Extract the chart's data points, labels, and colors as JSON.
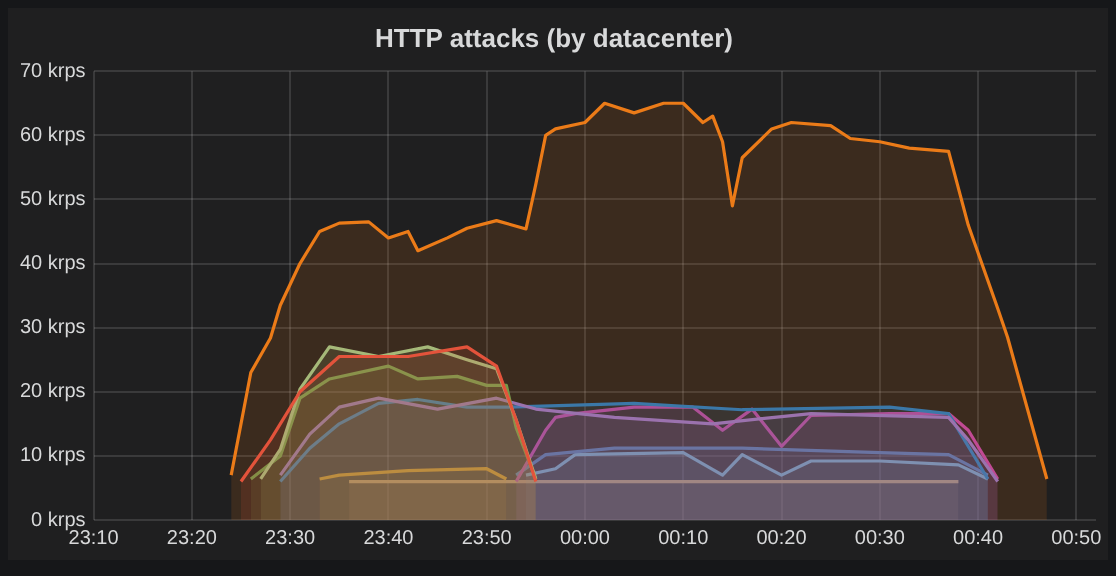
{
  "chart_data": {
    "type": "area",
    "title": "HTTP attacks (by datacenter)",
    "xlim": [
      "2000-01-01T23:10",
      "2000-01-02T00:52"
    ],
    "xticks": [
      {
        "value": "2000-01-01T23:10",
        "label": "23:10"
      },
      {
        "value": "2000-01-01T23:20",
        "label": "23:20"
      },
      {
        "value": "2000-01-01T23:30",
        "label": "23:30"
      },
      {
        "value": "2000-01-01T23:40",
        "label": "23:40"
      },
      {
        "value": "2000-01-01T23:50",
        "label": "23:50"
      },
      {
        "value": "2000-01-02T00:00",
        "label": "00:00"
      },
      {
        "value": "2000-01-02T00:10",
        "label": "00:10"
      },
      {
        "value": "2000-01-02T00:20",
        "label": "00:20"
      },
      {
        "value": "2000-01-02T00:30",
        "label": "00:30"
      },
      {
        "value": "2000-01-02T00:40",
        "label": "00:40"
      },
      {
        "value": "2000-01-02T00:50",
        "label": "00:50"
      }
    ],
    "ylim": [
      0,
      70
    ],
    "yticks": [
      {
        "value": 0,
        "label": "0 krps"
      },
      {
        "value": 10,
        "label": "10 krps"
      },
      {
        "value": 20,
        "label": "20 krps"
      },
      {
        "value": 30,
        "label": "30 krps"
      },
      {
        "value": 40,
        "label": "40 krps"
      },
      {
        "value": 50,
        "label": "50 krps"
      },
      {
        "value": 60,
        "label": "60 krps"
      },
      {
        "value": 70,
        "label": "70 krps"
      }
    ],
    "grid": true,
    "marker": "none",
    "line_style": "solid",
    "series": [
      {
        "color": "#eb7b18",
        "x": [
          "2000-01-01T23:24",
          "2000-01-01T23:26",
          "2000-01-01T23:28",
          "2000-01-01T23:29",
          "2000-01-01T23:31",
          "2000-01-01T23:33",
          "2000-01-01T23:35",
          "2000-01-01T23:38",
          "2000-01-01T23:40",
          "2000-01-01T23:42",
          "2000-01-01T23:43",
          "2000-01-01T23:46",
          "2000-01-01T23:48",
          "2000-01-01T23:51",
          "2000-01-01T23:54",
          "2000-01-01T23:55",
          "2000-01-01T23:56",
          "2000-01-01T23:57",
          "2000-01-02T00:00",
          "2000-01-02T00:02",
          "2000-01-02T00:05",
          "2000-01-02T00:08",
          "2000-01-02T00:10",
          "2000-01-02T00:12",
          "2000-01-02T00:13",
          "2000-01-02T00:14",
          "2000-01-02T00:15",
          "2000-01-02T00:16",
          "2000-01-02T00:19",
          "2000-01-02T00:21",
          "2000-01-02T00:25",
          "2000-01-02T00:27",
          "2000-01-02T00:30",
          "2000-01-02T00:33",
          "2000-01-02T00:37",
          "2000-01-02T00:39",
          "2000-01-02T00:42",
          "2000-01-02T00:43",
          "2000-01-02T00:47"
        ],
        "values": [
          7,
          23,
          28.4,
          33.5,
          40,
          45,
          46.3,
          46.5,
          44,
          45,
          42,
          44,
          45.5,
          46.7,
          45.4,
          52.4,
          60,
          61,
          62,
          65,
          63.5,
          65,
          65,
          62,
          63,
          59,
          49,
          56.5,
          61,
          62,
          61.5,
          59.5,
          59,
          58,
          57.5,
          46,
          33,
          28.5,
          6.4
        ]
      },
      {
        "color": "#e24d42",
        "x": [
          "2000-01-01T23:25",
          "2000-01-01T23:28",
          "2000-01-01T23:31",
          "2000-01-01T23:35",
          "2000-01-01T23:42",
          "2000-01-01T23:48",
          "2000-01-01T23:51",
          "2000-01-01T23:53",
          "2000-01-01T23:55"
        ],
        "values": [
          6,
          12.5,
          20,
          25.5,
          25.5,
          27,
          24,
          15.6,
          6
        ]
      },
      {
        "color": "#9ac48a",
        "x": [
          "2000-01-01T23:27",
          "2000-01-01T23:29",
          "2000-01-01T23:31",
          "2000-01-01T23:34",
          "2000-01-01T23:39",
          "2000-01-01T23:44",
          "2000-01-01T23:48",
          "2000-01-01T23:51",
          "2000-01-01T23:53",
          "2000-01-01T23:55"
        ],
        "values": [
          6.4,
          11,
          20.4,
          27,
          25.5,
          27,
          25,
          23.6,
          15.6,
          6.4
        ]
      },
      {
        "color": "#629e51",
        "x": [
          "2000-01-01T23:26",
          "2000-01-01T23:29",
          "2000-01-01T23:31",
          "2000-01-01T23:34",
          "2000-01-01T23:40",
          "2000-01-01T23:43",
          "2000-01-01T23:47",
          "2000-01-01T23:50",
          "2000-01-01T23:52",
          "2000-01-01T23:53",
          "2000-01-01T23:55"
        ],
        "values": [
          6.4,
          10,
          19,
          22,
          24,
          22,
          22.4,
          21,
          21,
          14.4,
          6.4
        ]
      },
      {
        "color": "#8f72c8",
        "x": [
          "2000-01-01T23:29",
          "2000-01-01T23:32",
          "2000-01-01T23:35",
          "2000-01-01T23:39",
          "2000-01-01T23:45",
          "2000-01-01T23:51",
          "2000-01-01T23:55",
          "2000-01-02T00:03",
          "2000-01-02T00:13",
          "2000-01-02T00:23",
          "2000-01-02T00:37",
          "2000-01-02T00:39",
          "2000-01-02T00:42"
        ],
        "values": [
          7,
          13.4,
          17.6,
          19,
          17.3,
          19,
          17.3,
          16,
          15,
          16.6,
          16,
          12.5,
          6
        ]
      },
      {
        "color": "#1f78c1",
        "x": [
          "2000-01-01T23:29",
          "2000-01-01T23:32",
          "2000-01-01T23:35",
          "2000-01-01T23:39",
          "2000-01-01T23:43",
          "2000-01-01T23:48",
          "2000-01-01T23:52",
          "2000-01-02T00:05",
          "2000-01-02T00:16",
          "2000-01-02T00:31",
          "2000-01-02T00:37",
          "2000-01-02T00:41"
        ],
        "values": [
          6,
          11.2,
          15,
          18.2,
          18.8,
          17.6,
          17.6,
          18.2,
          17.2,
          17.6,
          16.6,
          6.4
        ]
      },
      {
        "color": "#ba43a9",
        "x": [
          "2000-01-01T23:53",
          "2000-01-01T23:56",
          "2000-01-01T23:57",
          "2000-01-01T23:59",
          "2000-01-02T00:05",
          "2000-01-02T00:11",
          "2000-01-02T00:14",
          "2000-01-02T00:17",
          "2000-01-02T00:20",
          "2000-01-02T00:23",
          "2000-01-02T00:31",
          "2000-01-02T00:37",
          "2000-01-02T00:39",
          "2000-01-02T00:42"
        ],
        "values": [
          6,
          14,
          16,
          16.6,
          17.6,
          17.6,
          14,
          17.3,
          11.5,
          16.3,
          16.6,
          16.6,
          14,
          6.4
        ]
      },
      {
        "color": "#447ebc",
        "x": [
          "2000-01-01T23:53",
          "2000-01-01T23:56",
          "2000-01-02T00:03",
          "2000-01-02T00:16",
          "2000-01-02T00:30",
          "2000-01-02T00:37",
          "2000-01-02T00:41"
        ],
        "values": [
          7,
          10.2,
          11.2,
          11.2,
          10.5,
          10.2,
          7
        ]
      },
      {
        "color": "#70b8d8",
        "x": [
          "2000-01-01T23:54",
          "2000-01-01T23:57",
          "2000-01-01T23:59",
          "2000-01-02T00:10",
          "2000-01-02T00:14",
          "2000-01-02T00:16",
          "2000-01-02T00:20",
          "2000-01-02T00:23",
          "2000-01-02T00:30",
          "2000-01-02T00:38",
          "2000-01-02T00:41"
        ],
        "values": [
          7,
          8,
          10.2,
          10.5,
          7,
          10.2,
          7,
          9.2,
          9.2,
          8.6,
          6.4
        ]
      },
      {
        "color": "#e5a00e",
        "x": [
          "2000-01-01T23:33",
          "2000-01-01T23:35",
          "2000-01-01T23:42",
          "2000-01-01T23:50",
          "2000-01-01T23:52"
        ],
        "values": [
          6.4,
          7,
          7.7,
          8,
          6.4
        ]
      },
      {
        "color": "#c9a56b",
        "x": [
          "2000-01-01T23:36",
          "2000-01-02T00:38"
        ],
        "values": [
          6,
          6
        ]
      }
    ]
  }
}
